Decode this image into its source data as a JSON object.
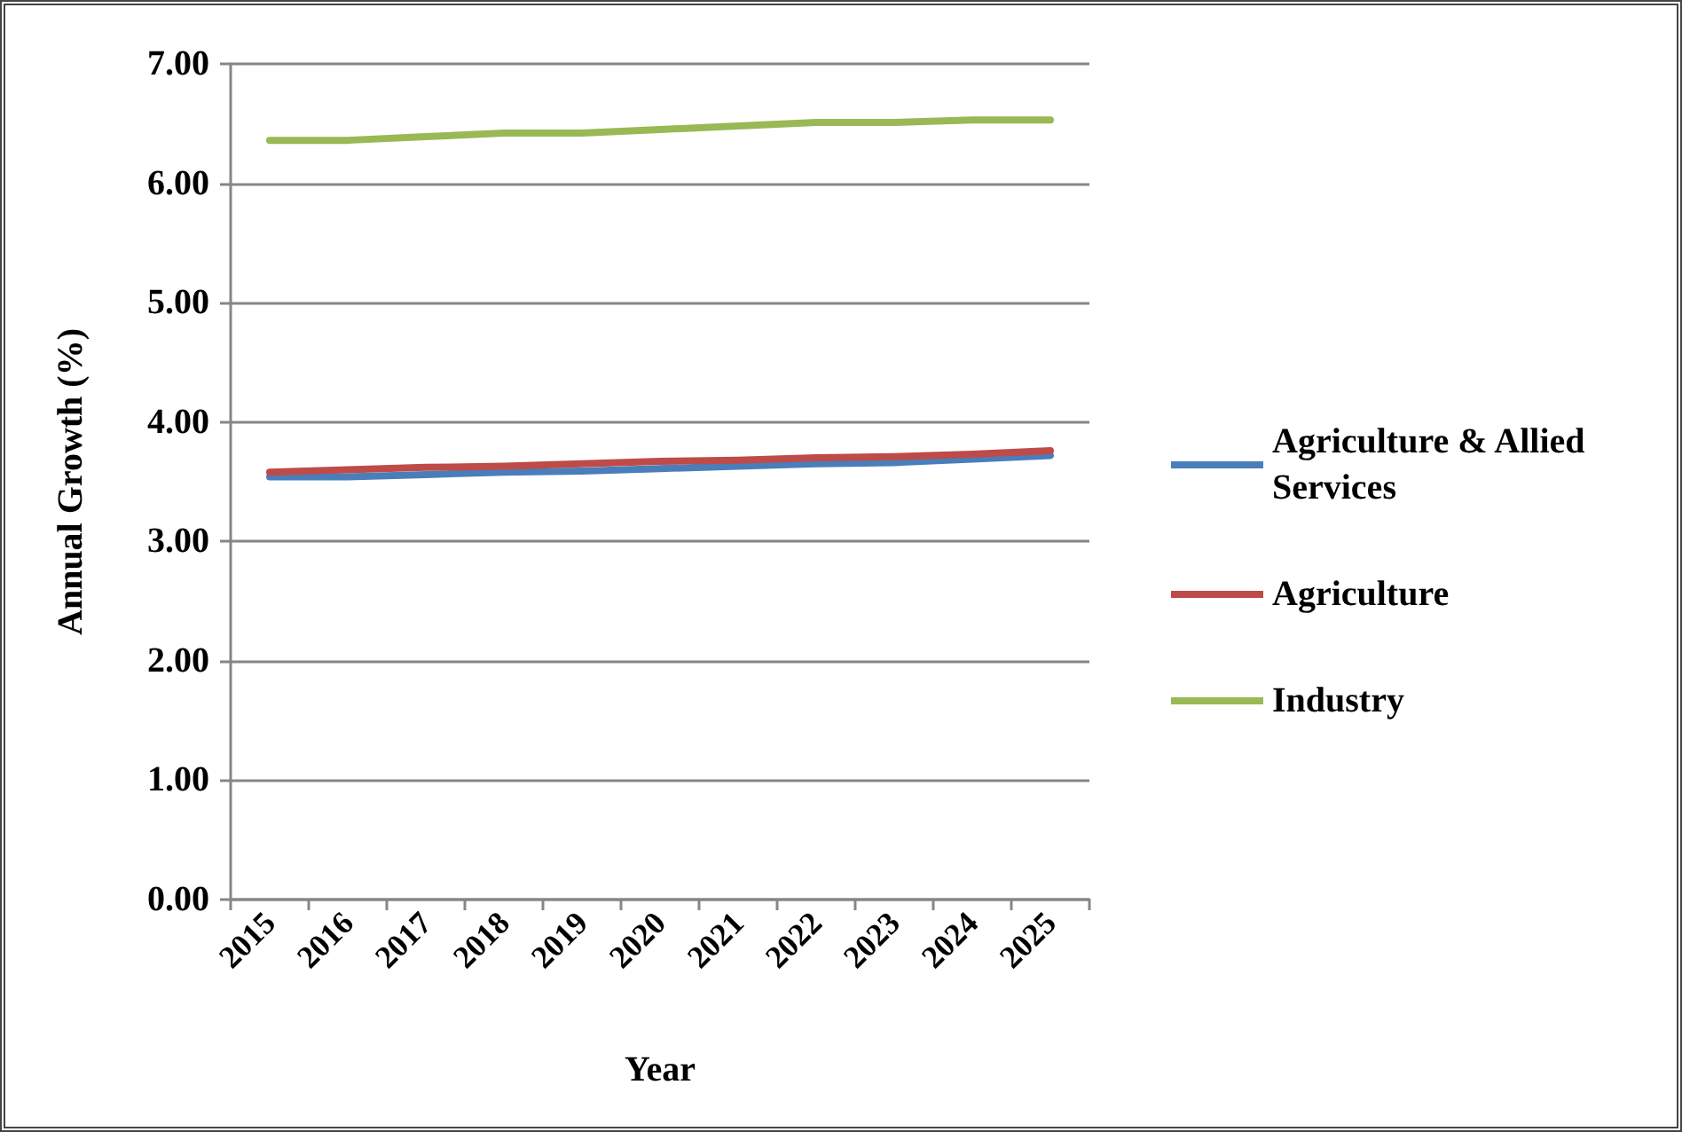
{
  "chart_data": {
    "type": "line",
    "xlabel": "Year",
    "ylabel": "Annual Growth (%)",
    "categories": [
      "2015",
      "2016",
      "2017",
      "2018",
      "2019",
      "2020",
      "2021",
      "2022",
      "2023",
      "2024",
      "2025"
    ],
    "series": [
      {
        "name": "Agriculture & Allied Services",
        "color": "#4a7ebb",
        "values": [
          3.54,
          3.54,
          3.56,
          3.58,
          3.59,
          3.61,
          3.63,
          3.65,
          3.66,
          3.69,
          3.72
        ]
      },
      {
        "name": "Agriculture",
        "color": "#be4b48",
        "values": [
          3.58,
          3.6,
          3.62,
          3.63,
          3.65,
          3.67,
          3.68,
          3.7,
          3.71,
          3.73,
          3.76
        ]
      },
      {
        "name": "Industry",
        "color": "#98b954",
        "values": [
          6.36,
          6.36,
          6.39,
          6.42,
          6.42,
          6.45,
          6.48,
          6.51,
          6.51,
          6.53,
          6.53
        ]
      }
    ],
    "ylim": [
      0,
      7
    ],
    "yticks": [
      {
        "value": 0,
        "label": "0.00"
      },
      {
        "value": 1,
        "label": "1.00"
      },
      {
        "value": 2,
        "label": "2.00"
      },
      {
        "value": 3,
        "label": "3.00"
      },
      {
        "value": 4,
        "label": "4.00"
      },
      {
        "value": 5,
        "label": "5.00"
      },
      {
        "value": 6,
        "label": "6.00"
      },
      {
        "value": 7,
        "label": "7.00"
      }
    ],
    "grid": "y",
    "legend": "right"
  }
}
